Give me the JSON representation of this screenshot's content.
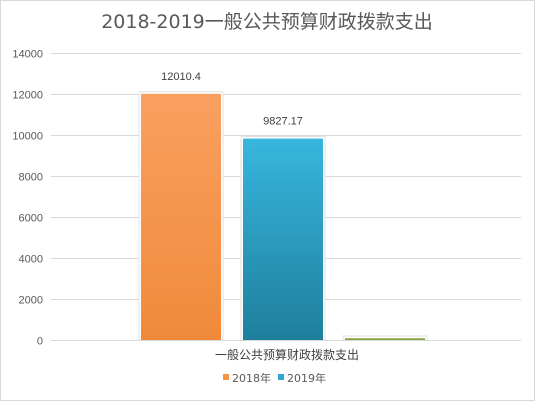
{
  "chart_data": {
    "type": "bar",
    "title": "2018-2019一般公共预算财政拨款支出",
    "categories": [
      "一般公共预算财政拨款支出"
    ],
    "series": [
      {
        "name": "2018年",
        "color": "#F79646",
        "values": [
          12010.4
        ],
        "label": "12010.4"
      },
      {
        "name": "2019年",
        "color": "#2FA7CF",
        "values": [
          9827.17
        ],
        "label": "9827.17"
      },
      {
        "name": "",
        "color": "#9BBB59",
        "values": [
          0
        ],
        "label": ""
      }
    ],
    "y_ticks": [
      "0",
      "2000",
      "4000",
      "6000",
      "8000",
      "10000",
      "12000",
      "14000"
    ],
    "ylim": [
      0,
      14000
    ],
    "grid": true,
    "legend": "bottom",
    "xlabel": "",
    "ylabel": ""
  }
}
